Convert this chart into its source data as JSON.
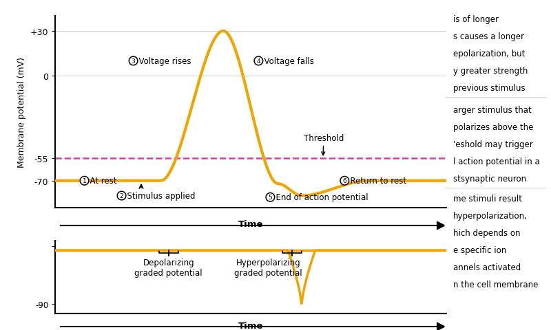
{
  "fig_width": 8.0,
  "fig_height": 4.81,
  "dpi": 100,
  "line_color": "#F0A500",
  "threshold_color": "#CC44AA",
  "threshold_value": -55,
  "resting_value": -70,
  "peak_value": 30,
  "trough_value": -80,
  "ylim_main": [
    -88,
    40
  ],
  "ylim_sub": [
    -95,
    -57
  ],
  "background_color": "#FFFFFF",
  "right_text_top": [
    "is of longer",
    "s causes a longer",
    "epolarization, but",
    "y greater strength",
    "previous stimulus"
  ],
  "right_text_mid": [
    "arger stimulus that",
    "polarizes above the",
    "'eshold may trigger",
    "l action potential in a",
    "stsynaptic neuron"
  ],
  "right_text_bot": [
    "me stimuli result",
    "hyperpolarization,",
    "hich depends on",
    "e specific ion",
    "annels activated",
    "n the cell membrane"
  ]
}
